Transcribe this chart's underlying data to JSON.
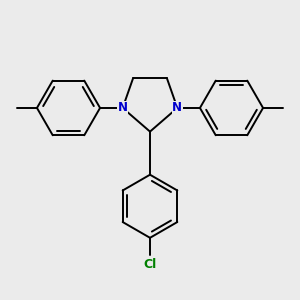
{
  "background_color": "#ebebeb",
  "bond_color": "#000000",
  "n_color": "#0000cd",
  "cl_color": "#008000",
  "line_width": 1.4,
  "figsize": [
    3.0,
    3.0
  ],
  "dpi": 100,
  "xlim": [
    -2.8,
    2.8
  ],
  "ylim": [
    -2.8,
    2.2
  ]
}
